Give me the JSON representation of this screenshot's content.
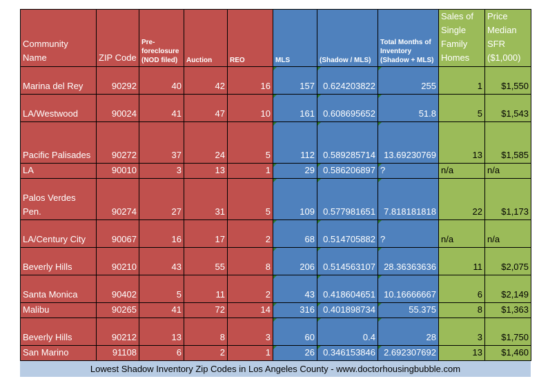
{
  "headers": {
    "community": "Community Name",
    "zip": "ZIP Code",
    "preforeclosure": "Pre-foreclosure (NOD filed)",
    "auction": "Auction",
    "reo": "REO",
    "mls": "MLS",
    "ratio": "(Shadow / MLS)",
    "months": "Total Months of Inventory (Shadow + MLS)",
    "sales": "Sales of Single Family Homes",
    "price": "Price Median SFR ($1,000)"
  },
  "rows": [
    {
      "community": "Marina del Rey",
      "zip": "90292",
      "nod": "40",
      "auction": "42",
      "reo": "16",
      "mls": "157",
      "ratio": "0.624203822",
      "months": "255",
      "sales": "1",
      "price": "$1,550"
    },
    {
      "community": "LA/Westwood",
      "zip": "90024",
      "nod": "41",
      "auction": "47",
      "reo": "10",
      "mls": "161",
      "ratio": "0.608695652",
      "months": "51.8",
      "sales": "5",
      "price": "$1,543"
    },
    {
      "community": "Pacific Palisades",
      "zip": "90272",
      "nod": "37",
      "auction": "24",
      "reo": "5",
      "mls": "112",
      "ratio": "0.589285714",
      "months": "13.69230769",
      "sales": "13",
      "price": "$1,585"
    },
    {
      "community": "LA",
      "zip": "90010",
      "nod": "3",
      "auction": "13",
      "reo": "1",
      "mls": "29",
      "ratio": "0.586206897",
      "months": "?",
      "sales": "n/a",
      "price": "n/a"
    },
    {
      "community": "Palos Verdes Pen.",
      "zip": "90274",
      "nod": "27",
      "auction": "31",
      "reo": "5",
      "mls": "109",
      "ratio": "0.577981651",
      "months": "7.818181818",
      "sales": "22",
      "price": "$1,173"
    },
    {
      "community": "LA/Century City",
      "zip": "90067",
      "nod": "16",
      "auction": "17",
      "reo": "2",
      "mls": "68",
      "ratio": "0.514705882",
      "months": "?",
      "sales": "n/a",
      "price": "n/a"
    },
    {
      "community": "Beverly Hills",
      "zip": "90210",
      "nod": "43",
      "auction": "55",
      "reo": "8",
      "mls": "206",
      "ratio": "0.514563107",
      "months": "28.36363636",
      "sales": "11",
      "price": "$2,075"
    },
    {
      "community": "Santa Monica",
      "zip": "90402",
      "nod": "5",
      "auction": "11",
      "reo": "2",
      "mls": "43",
      "ratio": "0.418604651",
      "months": "10.16666667",
      "sales": "6",
      "price": "$2,149"
    },
    {
      "community": "Malibu",
      "zip": "90265",
      "nod": "41",
      "auction": "72",
      "reo": "14",
      "mls": "316",
      "ratio": "0.401898734",
      "months": "55.375",
      "sales": "8",
      "price": "$1,363"
    },
    {
      "community": "Beverly Hills",
      "zip": "90212",
      "nod": "13",
      "auction": "8",
      "reo": "3",
      "mls": "60",
      "ratio": "0.4",
      "months": "28",
      "sales": "3",
      "price": "$1,750"
    },
    {
      "community": "San Marino",
      "zip": "91108",
      "nod": "6",
      "auction": "2",
      "reo": "1",
      "mls": "26",
      "ratio": "0.346153846",
      "months": "2.692307692",
      "sales": "13",
      "price": "$1,460"
    }
  ],
  "caption": "Lowest Shadow Inventory Zip Codes in Los Angeles County - www.doctorhousingbubble.com",
  "colors": {
    "red": "#c0504d",
    "blue": "#4f81bd",
    "green": "#9bbb59",
    "caption_bg": "#b8cce4"
  }
}
